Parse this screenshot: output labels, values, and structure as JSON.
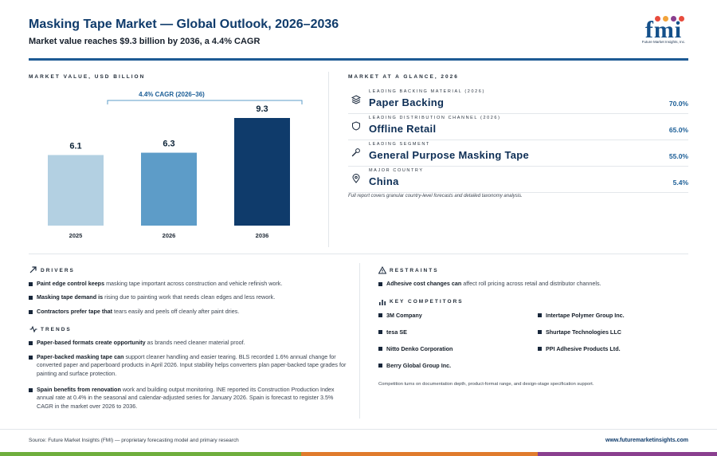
{
  "header": {
    "title": "Masking Tape Market — Global Outlook, 2026–2036",
    "subtitle": "Market value reaches $9.3 billion by 2036, a 4.4% CAGR",
    "logo_text": "fmi",
    "logo_sub": "Future Market Insights, Inc."
  },
  "chart_section": {
    "label": "MARKET VALUE, USD BILLION"
  },
  "chart_data": {
    "type": "bar",
    "title": "",
    "categories": [
      "2025",
      "2026",
      "2036"
    ],
    "values": [
      6.1,
      6.3,
      9.3
    ],
    "value_labels": [
      "6.1",
      "6.3",
      "9.3"
    ],
    "bar_colors": [
      "#b3d0e2",
      "#5d9cc8",
      "#0f3b6b"
    ],
    "ylim": [
      0,
      10
    ],
    "grid": false,
    "annotation": "4.4% CAGR (2026–36)",
    "xlabel": "",
    "ylabel": ""
  },
  "glance": {
    "label": "MARKET AT A GLANCE, 2026",
    "items": [
      {
        "label": "LEADING BACKING MATERIAL (2026)",
        "value": "Paper Backing",
        "share": "70.0%",
        "icon": "layers-icon"
      },
      {
        "label": "LEADING DISTRIBUTION CHANNEL (2026)",
        "value": "Offline Retail",
        "share": "65.0%",
        "icon": "shield-icon"
      },
      {
        "label": "LEADING SEGMENT",
        "value": "General Purpose Masking Tape",
        "share": "55.0%",
        "icon": "wrench-icon"
      },
      {
        "label": "MAJOR COUNTRY",
        "value": "China",
        "share": "5.4%",
        "icon": "map-pin-icon"
      }
    ],
    "note": "Full report covers granular country-level forecasts and detailed taxonomy analysis."
  },
  "drivers": {
    "label": "DRIVERS",
    "items": [
      {
        "bold": "Paint edge control keeps",
        "rest": " masking tape important across construction and vehicle refinish work."
      },
      {
        "bold": "Masking tape demand is",
        "rest": " rising due to painting work that needs clean edges and less rework."
      },
      {
        "bold": "Contractors prefer tape that",
        "rest": " tears easily and peels off cleanly after paint dries."
      }
    ]
  },
  "trends": {
    "label": "TRENDS",
    "items": [
      {
        "bold": "Paper-based formats create opportunity",
        "rest": " as brands need cleaner material proof."
      },
      {
        "bold": "Paper-backed masking tape can",
        "rest": " support cleaner handling and easier tearing. BLS recorded 1.6% annual change for converted paper and paperboard products in April 2026. Input stability helps converters plan paper-backed tape grades for painting and surface protection."
      },
      {
        "bold": "Spain benefits from renovation",
        "rest": " work and building output monitoring. INE reported its Construction Production Index annual rate at 0.4% in the seasonal and calendar-adjusted series for January 2026. Spain is forecast to register 3.5% CAGR in the market over 2026 to 2036."
      }
    ]
  },
  "restraints": {
    "label": "RESTRAINTS",
    "items": [
      {
        "bold": "Adhesive cost changes can",
        "rest": " affect roll pricing across retail and distributor channels."
      }
    ]
  },
  "competitors": {
    "label": "KEY COMPETITORS",
    "items": [
      "3M Company",
      "Intertape Polymer Group Inc.",
      "tesa SE",
      "Shurtape Technologies LLC",
      "Nitto Denko Corporation",
      "PPI Adhesive Products Ltd.",
      "Berry Global Group Inc."
    ],
    "note": "Competition turns on documentation depth, product-format range, and design-stage specification support."
  },
  "footer": {
    "source": "Source: Future Market Insights (FMI) — proprietary forecasting model and primary research",
    "url": "www.futuremarketinsights.com"
  },
  "colors": {
    "brand": "#0f3b6b",
    "accent": "#1d5a94",
    "bar_green": "#6fae3d",
    "bar_orange": "#e07b2c",
    "bar_purple": "#8a3f8f"
  }
}
